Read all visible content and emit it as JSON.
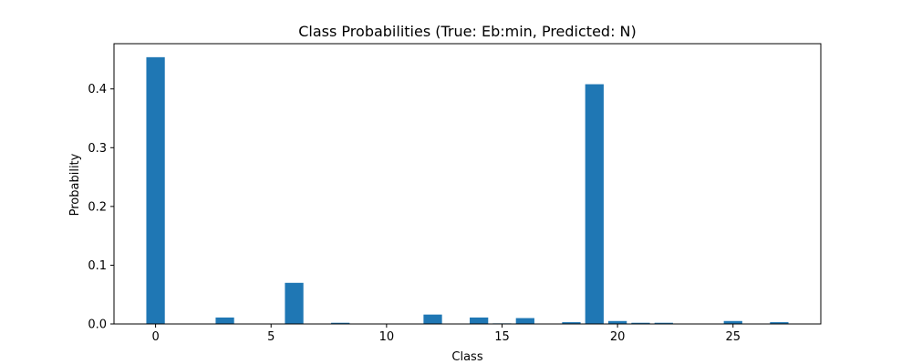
{
  "chart_data": {
    "type": "bar",
    "title": "Class Probabilities (True: Eb:min, Predicted: N)",
    "xlabel": "Class",
    "ylabel": "Probability",
    "x": [
      0,
      1,
      2,
      3,
      4,
      5,
      6,
      7,
      8,
      9,
      10,
      11,
      12,
      13,
      14,
      15,
      16,
      17,
      18,
      19,
      20,
      21,
      22,
      23,
      24,
      25,
      26,
      27
    ],
    "values": [
      0.454,
      0.0,
      0.0,
      0.011,
      0.0,
      0.0,
      0.07,
      0.0,
      0.002,
      0.0,
      0.0,
      0.0,
      0.016,
      0.0,
      0.011,
      0.001,
      0.01,
      0.0,
      0.003,
      0.408,
      0.005,
      0.002,
      0.002,
      0.0,
      0.0,
      0.005,
      0.0,
      0.003
    ],
    "xlim": [
      -1.8,
      28.8
    ],
    "ylim": [
      0,
      0.477
    ],
    "xticks": [
      0,
      5,
      10,
      15,
      20,
      25
    ],
    "yticks": [
      0.0,
      0.1,
      0.2,
      0.3,
      0.4
    ],
    "ytick_labels": [
      "0.0",
      "0.1",
      "0.2",
      "0.3",
      "0.4"
    ],
    "xtick_labels": [
      "0",
      "5",
      "10",
      "15",
      "20",
      "25"
    ],
    "bar_color": "#1f77b4",
    "grid": false
  }
}
